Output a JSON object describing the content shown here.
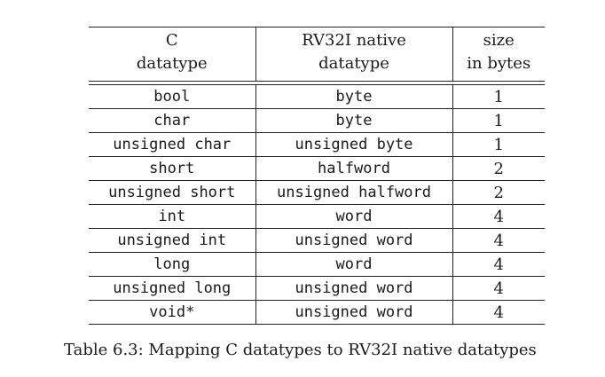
{
  "table": {
    "headers": [
      [
        "C",
        "datatype"
      ],
      [
        "RV32I native",
        "datatype"
      ],
      [
        "size",
        "in bytes"
      ]
    ],
    "rows": [
      [
        "bool",
        "byte",
        "1"
      ],
      [
        "char",
        "byte",
        "1"
      ],
      [
        "unsigned char",
        "unsigned byte",
        "1"
      ],
      [
        "short",
        "halfword",
        "2"
      ],
      [
        "unsigned short",
        "unsigned halfword",
        "2"
      ],
      [
        "int",
        "word",
        "4"
      ],
      [
        "unsigned int",
        "unsigned word",
        "4"
      ],
      [
        "long",
        "word",
        "4"
      ],
      [
        "unsigned long",
        "unsigned word",
        "4"
      ],
      [
        "void*",
        "unsigned word",
        "4"
      ]
    ]
  },
  "caption": "Table 6.3: Mapping C datatypes to RV32I native datatypes"
}
